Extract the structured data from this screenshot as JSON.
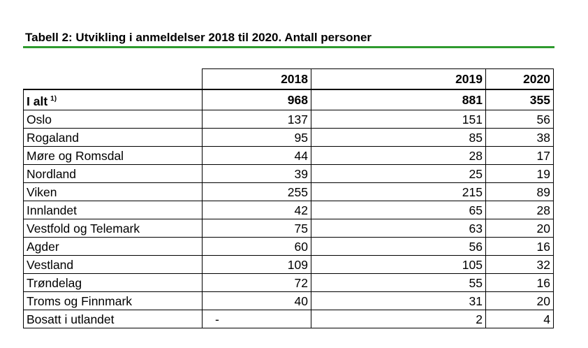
{
  "title": "Tabell 2: Utvikling i anmeldelser 2018 til 2020. Antall personer",
  "columns": [
    "2018",
    "2019",
    "2020"
  ],
  "total": {
    "label": "I alt",
    "note": "1)",
    "values": [
      "968",
      "881",
      "355"
    ]
  },
  "rows": [
    {
      "label": "Oslo",
      "values": [
        "137",
        "151",
        "56"
      ]
    },
    {
      "label": "Rogaland",
      "values": [
        "95",
        "85",
        "38"
      ]
    },
    {
      "label": "Møre og Romsdal",
      "values": [
        "44",
        "28",
        "17"
      ]
    },
    {
      "label": "Nordland",
      "values": [
        "39",
        "25",
        "19"
      ]
    },
    {
      "label": "Viken",
      "values": [
        "255",
        "215",
        "89"
      ]
    },
    {
      "label": "Innlandet",
      "values": [
        "42",
        "65",
        "28"
      ]
    },
    {
      "label": "Vestfold og Telemark",
      "values": [
        "75",
        "63",
        "20"
      ]
    },
    {
      "label": "Agder",
      "values": [
        "60",
        "56",
        "16"
      ]
    },
    {
      "label": "Vestland",
      "values": [
        "109",
        "105",
        "32"
      ]
    },
    {
      "label": "Trøndelag",
      "values": [
        "72",
        "55",
        "16"
      ]
    },
    {
      "label": "Troms og Finnmark",
      "values": [
        "40",
        "31",
        "20"
      ]
    },
    {
      "label": "Bosatt i utlandet",
      "values": [
        "-",
        "2",
        "4"
      ]
    }
  ],
  "colors": {
    "rule": "#2e9a2e"
  }
}
